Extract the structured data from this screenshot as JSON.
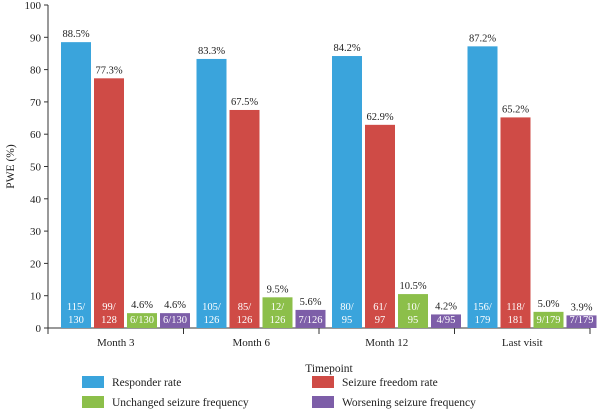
{
  "chart_data": {
    "type": "bar",
    "xlabel": "Timepoint",
    "ylabel": "PWE (%)",
    "ylim": [
      0,
      100
    ],
    "yticks": [
      0,
      10,
      20,
      30,
      40,
      50,
      60,
      70,
      80,
      90,
      100
    ],
    "grid": false,
    "legend_position": "bottom",
    "categories": [
      "Month 3",
      "Month 6",
      "Month 12",
      "Last visit"
    ],
    "series": [
      {
        "name": "Responder rate",
        "color": "#3aa4dc",
        "values": [
          88.5,
          83.3,
          84.2,
          87.2
        ],
        "value_labels": [
          "88.5%",
          "83.3%",
          "84.2%",
          "87.2%"
        ],
        "count_labels": [
          [
            "115/",
            "130"
          ],
          [
            "105/",
            "126"
          ],
          [
            "80/",
            "95"
          ],
          [
            "156/",
            "179"
          ]
        ]
      },
      {
        "name": "Seizure freedom rate",
        "color": "#cf4b46",
        "values": [
          77.3,
          67.5,
          62.9,
          65.2
        ],
        "value_labels": [
          "77.3%",
          "67.5%",
          "62.9%",
          "65.2%"
        ],
        "count_labels": [
          [
            "99/",
            "128"
          ],
          [
            "85/",
            "126"
          ],
          [
            "61/",
            "97"
          ],
          [
            "118/",
            "181"
          ]
        ]
      },
      {
        "name": "Unchanged seizure frequency",
        "color": "#8cbf4a",
        "values": [
          4.6,
          9.5,
          10.5,
          5.0
        ],
        "value_labels": [
          "4.6%",
          "9.5%",
          "10.5%",
          "5.0%"
        ],
        "count_labels": [
          [
            "6/130"
          ],
          [
            "12/",
            "126"
          ],
          [
            "10/",
            "95"
          ],
          [
            "9/179"
          ]
        ]
      },
      {
        "name": "Worsening seizure frequency",
        "color": "#7d5ea8",
        "values": [
          4.6,
          5.6,
          4.2,
          3.9
        ],
        "value_labels": [
          "4.6%",
          "5.6%",
          "4.2%",
          "3.9%"
        ],
        "count_labels": [
          [
            "6/130"
          ],
          [
            "7/126"
          ],
          [
            "4/95"
          ],
          [
            "7/179"
          ]
        ]
      }
    ]
  }
}
